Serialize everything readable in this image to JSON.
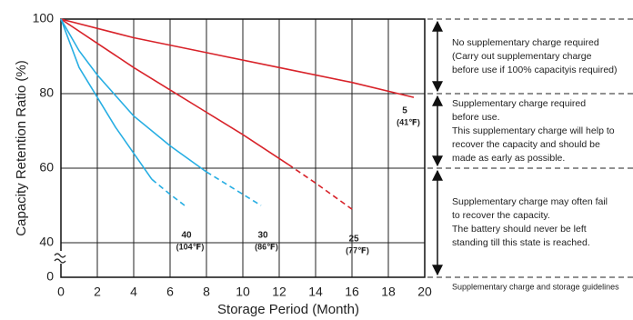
{
  "chart_data": {
    "type": "line",
    "x_label": "Storage Period (Month)",
    "y_label": "Capacity Retention Ratio (%)",
    "xlim": [
      0,
      20
    ],
    "ylim": [
      0,
      100
    ],
    "xticks": [
      0,
      2,
      4,
      6,
      8,
      10,
      12,
      14,
      16,
      18,
      20
    ],
    "yticks": [
      0,
      40,
      60,
      80,
      100
    ],
    "grid": true,
    "series": [
      {
        "name": "5",
        "note": "(41℉)",
        "color": "#d8232a",
        "segments": [
          {
            "line": "solid",
            "x": [
              0,
              4,
              8,
              12,
              16,
              19.4
            ],
            "values": [
              100,
              95,
              91,
              87,
              83,
              79
            ]
          }
        ]
      },
      {
        "name": "25",
        "note": "(77℉)",
        "color": "#d8232a",
        "segments": [
          {
            "line": "solid",
            "x": [
              0,
              2,
              4,
              6,
              8,
              10,
              12.5
            ],
            "values": [
              100,
              93.5,
              87,
              81,
              75,
              69,
              61
            ]
          },
          {
            "line": "dashed",
            "x": [
              12.5,
              14,
              16
            ],
            "values": [
              61,
              56,
              49
            ]
          }
        ]
      },
      {
        "name": "30",
        "note": "(86℉)",
        "color": "#27aee3",
        "segments": [
          {
            "line": "solid",
            "x": [
              0,
              1,
              2,
              4,
              6,
              8
            ],
            "values": [
              100,
              91.5,
              85,
              74,
              66,
              59
            ]
          },
          {
            "line": "dashed",
            "x": [
              8,
              10,
              11
            ],
            "values": [
              59,
              53,
              50
            ]
          }
        ]
      },
      {
        "name": "40",
        "note": "(104℉)",
        "color": "#27aee3",
        "segments": [
          {
            "line": "solid",
            "x": [
              0,
              1,
              2,
              3,
              4,
              5
            ],
            "values": [
              100,
              87,
              79,
              71,
              64,
              57
            ]
          },
          {
            "line": "dashed",
            "x": [
              5,
              6,
              6.8
            ],
            "values": [
              57,
              53,
              50
            ]
          }
        ]
      }
    ],
    "guidelines": [
      {
        "lines": [
          "No supplementary charge required",
          "(Carry out supplementary charge",
          "before use if 100% capacityis required)"
        ]
      },
      {
        "lines": [
          "Supplementary charge required",
          "before use.",
          "This supplementary charge will help to",
          "recover  the capacity and should be",
          "made as early as possible."
        ]
      },
      {
        "lines": [
          "Supplementary charge may often fail",
          "to recover the capacity.",
          "The battery should never be left",
          "standing till this state is reached."
        ]
      }
    ],
    "guidelines_title": "Supplementary charge and storage guidelines"
  }
}
